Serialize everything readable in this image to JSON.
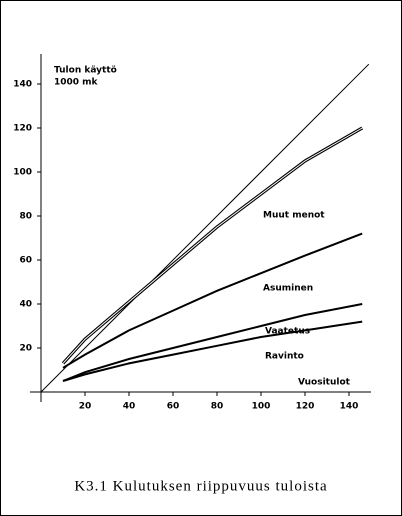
{
  "chart_data": {
    "type": "line",
    "title": "K3.1 Kulutuksen riippuvuus tuloista",
    "ylabel": [
      "Tulon käyttö",
      "1000 mk"
    ],
    "xlabel": "Vuositulot",
    "xlim": [
      0,
      150
    ],
    "ylim": [
      0,
      150
    ],
    "xticks": [
      20,
      40,
      60,
      80,
      100,
      120,
      140
    ],
    "yticks": [
      20,
      40,
      60,
      80,
      100,
      120,
      140
    ],
    "series": [
      {
        "color": "#000000",
        "x": [
          0,
          149
        ],
        "values": [
          0,
          149
        ]
      },
      {
        "name": "Muut menot",
        "color": "#000000",
        "double": true,
        "x": [
          10,
          20,
          40,
          60,
          80,
          100,
          120,
          146
        ],
        "values": [
          13,
          24,
          41,
          58,
          75,
          90,
          105,
          120
        ]
      },
      {
        "name": "Asuminen",
        "color": "#000000",
        "x": [
          10,
          20,
          40,
          60,
          80,
          100,
          120,
          146
        ],
        "values": [
          11,
          17,
          28,
          37,
          46,
          54,
          62,
          72
        ]
      },
      {
        "name": "Vaatetus",
        "color": "#000000",
        "x": [
          10,
          20,
          40,
          60,
          80,
          100,
          120,
          146
        ],
        "values": [
          5,
          9,
          15,
          20,
          25,
          30,
          35,
          40
        ]
      },
      {
        "name": "Ravinto",
        "color": "#000000",
        "x": [
          10,
          20,
          40,
          60,
          80,
          100,
          120,
          146
        ],
        "values": [
          5,
          8,
          13,
          17,
          21,
          25,
          28,
          32
        ]
      }
    ]
  }
}
